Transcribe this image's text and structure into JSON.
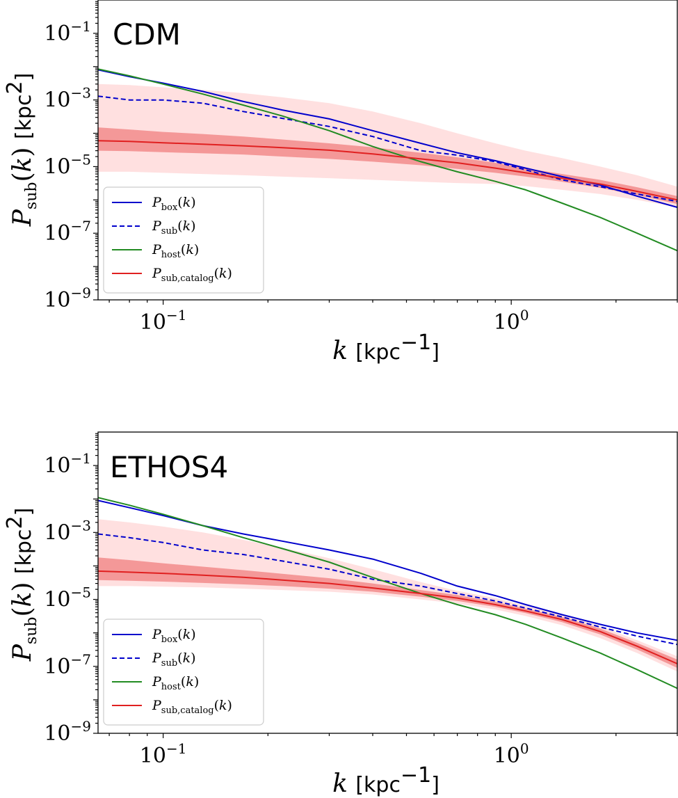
{
  "chart_data": [
    {
      "type": "line",
      "title": "CDM",
      "xlabel": "k [kpc⁻¹]",
      "ylabel": "P_sub(k) [kpc²]",
      "xscale": "log",
      "yscale": "log",
      "xlim": [
        0.065,
        3.0
      ],
      "ylim": [
        1e-09,
        1.0
      ],
      "x_ticks": [
        {
          "value": 0.1,
          "base": "10",
          "exp": "−1"
        },
        {
          "value": 1.0,
          "base": "10",
          "exp": "0"
        }
      ],
      "y_ticks": [
        {
          "value": 1e-09,
          "base": "10",
          "exp": "−9"
        },
        {
          "value": 1e-07,
          "base": "10",
          "exp": "−7"
        },
        {
          "value": 1e-05,
          "base": "10",
          "exp": "−5"
        },
        {
          "value": 0.001,
          "base": "10",
          "exp": "−3"
        },
        {
          "value": 0.1,
          "base": "10",
          "exp": "−1"
        }
      ],
      "legend_position": "lower-left",
      "series": [
        {
          "name": "P_box(k)",
          "legend_main": "P",
          "legend_sub": "box",
          "color": "#0000cc",
          "style": "solid",
          "x": [
            0.065,
            0.08,
            0.1,
            0.13,
            0.17,
            0.22,
            0.3,
            0.4,
            0.55,
            0.7,
            0.9,
            1.1,
            1.4,
            1.8,
            2.3,
            3.0
          ],
          "y": [
            0.008,
            0.005,
            0.0032,
            0.0018,
            0.0009,
            0.0005,
            0.00027,
            0.00012,
            5e-05,
            2.6e-05,
            1.5e-05,
            9e-06,
            5e-06,
            2.8e-06,
            1.3e-06,
            6e-07
          ]
        },
        {
          "name": "P_sub(k)",
          "legend_main": "P",
          "legend_sub": "sub",
          "color": "#0000cc",
          "style": "dashed",
          "x": [
            0.065,
            0.08,
            0.1,
            0.13,
            0.17,
            0.22,
            0.3,
            0.4,
            0.55,
            0.7,
            0.9,
            1.1,
            1.4,
            1.8,
            2.3,
            3.0
          ],
          "y": [
            0.0013,
            0.001,
            0.001,
            0.0008,
            0.00045,
            0.00028,
            0.00016,
            8e-05,
            3e-05,
            2.2e-05,
            1.4e-05,
            8e-06,
            4e-06,
            2.5e-06,
            1.5e-06,
            9e-07
          ]
        },
        {
          "name": "P_host(k)",
          "legend_main": "P",
          "legend_sub": "host",
          "color": "#228b22",
          "style": "solid",
          "x": [
            0.065,
            0.08,
            0.1,
            0.13,
            0.17,
            0.22,
            0.3,
            0.4,
            0.55,
            0.7,
            0.9,
            1.1,
            1.4,
            1.8,
            2.3,
            3.0
          ],
          "y": [
            0.0085,
            0.0053,
            0.003,
            0.0015,
            0.0007,
            0.00033,
            0.00012,
            4e-05,
            1.4e-05,
            7e-06,
            3.6e-06,
            2e-06,
            8e-07,
            3e-07,
            1e-07,
            3e-08
          ]
        },
        {
          "name": "P_sub,catalog(k)",
          "legend_main": "P",
          "legend_sub": "sub,catalog",
          "color": "#e02020",
          "style": "solid",
          "x": [
            0.065,
            0.08,
            0.1,
            0.13,
            0.17,
            0.22,
            0.3,
            0.4,
            0.55,
            0.7,
            0.9,
            1.1,
            1.4,
            1.8,
            2.3,
            3.0
          ],
          "y": [
            6e-05,
            5.7e-05,
            5.2e-05,
            4.7e-05,
            4.2e-05,
            3.7e-05,
            3.1e-05,
            2.4e-05,
            1.7e-05,
            1.3e-05,
            9e-06,
            6.5e-06,
            4.5e-06,
            3e-06,
            1.8e-06,
            1e-06
          ],
          "band_inner_low": [
            3e-05,
            2.9e-05,
            2.7e-05,
            2.5e-05,
            2.3e-05,
            2e-05,
            1.7e-05,
            1.4e-05,
            1.1e-05,
            8.5e-06,
            6.5e-06,
            5e-06,
            3.5e-06,
            2.3e-06,
            1.4e-06,
            7.5e-07
          ],
          "band_inner_high": [
            0.00015,
            0.00013,
            0.00011,
            9.5e-05,
            8e-05,
            6.5e-05,
            5e-05,
            3.8e-05,
            2.6e-05,
            1.9e-05,
            1.3e-05,
            9e-06,
            6e-06,
            4e-06,
            2.4e-06,
            1.3e-06
          ],
          "band_outer_low": [
            7e-06,
            7e-06,
            6.5e-06,
            6e-06,
            5.5e-06,
            5e-06,
            4.5e-06,
            4e-06,
            3.5e-06,
            3.2e-06,
            3e-06,
            2.6e-06,
            2e-06,
            1.5e-06,
            1e-06,
            6e-07
          ],
          "band_outer_high": [
            0.003,
            0.0028,
            0.0024,
            0.002,
            0.0016,
            0.0012,
            0.0008,
            0.00045,
            0.0002,
            0.0001,
            5e-05,
            3e-05,
            1.8e-05,
            1e-05,
            5.5e-06,
            2.5e-06
          ]
        }
      ]
    },
    {
      "type": "line",
      "title": "ETHOS4",
      "xlabel": "k [kpc⁻¹]",
      "ylabel": "P_sub(k) [kpc²]",
      "xscale": "log",
      "yscale": "log",
      "xlim": [
        0.065,
        3.0
      ],
      "ylim": [
        1e-09,
        1.0
      ],
      "x_ticks": [
        {
          "value": 0.1,
          "base": "10",
          "exp": "−1"
        },
        {
          "value": 1.0,
          "base": "10",
          "exp": "0"
        }
      ],
      "y_ticks": [
        {
          "value": 1e-09,
          "base": "10",
          "exp": "−9"
        },
        {
          "value": 1e-07,
          "base": "10",
          "exp": "−7"
        },
        {
          "value": 1e-05,
          "base": "10",
          "exp": "−5"
        },
        {
          "value": 0.001,
          "base": "10",
          "exp": "−3"
        },
        {
          "value": 0.1,
          "base": "10",
          "exp": "−1"
        }
      ],
      "legend_position": "lower-left",
      "series": [
        {
          "name": "P_box(k)",
          "legend_main": "P",
          "legend_sub": "box",
          "color": "#0000cc",
          "style": "solid",
          "x": [
            0.065,
            0.08,
            0.1,
            0.13,
            0.17,
            0.22,
            0.3,
            0.4,
            0.55,
            0.7,
            0.9,
            1.1,
            1.4,
            1.8,
            2.3,
            3.0
          ],
          "y": [
            0.009,
            0.0055,
            0.0032,
            0.0016,
            0.0009,
            0.00055,
            0.0003,
            0.00016,
            6e-05,
            2.5e-05,
            1.3e-05,
            7e-06,
            3.5e-06,
            1.8e-06,
            1e-06,
            6e-07
          ]
        },
        {
          "name": "P_sub(k)",
          "legend_main": "P",
          "legend_sub": "sub",
          "color": "#0000cc",
          "style": "dashed",
          "x": [
            0.065,
            0.08,
            0.1,
            0.13,
            0.17,
            0.22,
            0.3,
            0.4,
            0.55,
            0.7,
            0.9,
            1.1,
            1.4,
            1.8,
            2.3,
            3.0
          ],
          "y": [
            0.0009,
            0.0007,
            0.0005,
            0.0003,
            0.00022,
            0.00014,
            8e-05,
            4e-05,
            2.5e-05,
            1.5e-05,
            9e-06,
            5.5e-06,
            3e-06,
            1.5e-06,
            8e-07,
            4.5e-07
          ]
        },
        {
          "name": "P_host(k)",
          "legend_main": "P",
          "legend_sub": "host",
          "color": "#228b22",
          "style": "solid",
          "x": [
            0.065,
            0.08,
            0.1,
            0.13,
            0.17,
            0.22,
            0.3,
            0.4,
            0.55,
            0.7,
            0.9,
            1.1,
            1.4,
            1.8,
            2.3,
            3.0
          ],
          "y": [
            0.011,
            0.0065,
            0.0035,
            0.0016,
            0.0007,
            0.00033,
            0.00013,
            4.5e-05,
            1.5e-05,
            7e-06,
            3.5e-06,
            1.8e-06,
            7e-07,
            2.5e-07,
            8e-08,
            2.2e-08
          ]
        },
        {
          "name": "P_sub,catalog(k)",
          "legend_main": "P",
          "legend_sub": "sub,catalog",
          "color": "#e02020",
          "style": "solid",
          "x": [
            0.065,
            0.08,
            0.1,
            0.13,
            0.17,
            0.22,
            0.3,
            0.4,
            0.55,
            0.7,
            0.9,
            1.1,
            1.4,
            1.8,
            2.3,
            3.0
          ],
          "y": [
            7e-05,
            6.5e-05,
            6e-05,
            5.3e-05,
            4.6e-05,
            3.8e-05,
            3e-05,
            2.2e-05,
            1.5e-05,
            1.1e-05,
            7e-06,
            4.5e-06,
            2.5e-06,
            1.1e-06,
            4e-07,
            1.2e-07
          ],
          "band_inner_low": [
            3.8e-05,
            3.6e-05,
            3.4e-05,
            3.1e-05,
            2.8e-05,
            2.5e-05,
            2.1e-05,
            1.7e-05,
            1.2e-05,
            9e-06,
            6e-06,
            3.9e-06,
            2.1e-06,
            9e-07,
            3.2e-07,
            9e-08
          ],
          "band_inner_high": [
            0.00018,
            0.00015,
            0.00012,
            9.5e-05,
            7.5e-05,
            5.8e-05,
            4.3e-05,
            3e-05,
            1.9e-05,
            1.35e-05,
            8.5e-06,
            5.3e-06,
            3e-06,
            1.35e-06,
            5e-07,
            1.6e-07
          ],
          "band_outer_low": [
            2.5e-05,
            2.5e-05,
            2.4e-05,
            2.3e-05,
            2.1e-05,
            1.9e-05,
            1.7e-05,
            1.4e-05,
            1e-05,
            7.5e-06,
            5e-06,
            3.2e-06,
            1.7e-06,
            7e-07,
            2.5e-07,
            7e-08
          ],
          "band_outer_high": [
            0.0025,
            0.002,
            0.0015,
            0.001,
            0.0006,
            0.00035,
            0.00017,
            8e-05,
            3.3e-05,
            1.8e-05,
            1.1e-05,
            6.5e-06,
            3.6e-06,
            1.6e-06,
            6e-07,
            2e-07
          ]
        }
      ]
    }
  ]
}
